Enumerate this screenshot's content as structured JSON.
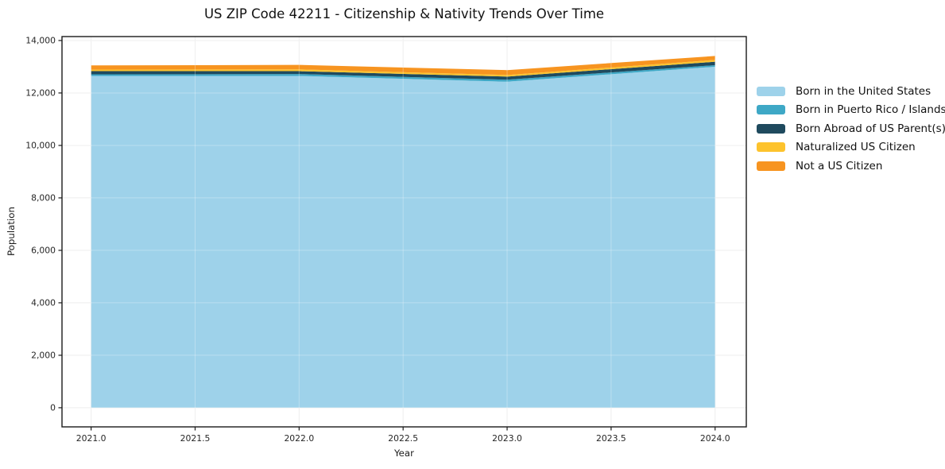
{
  "title": "US ZIP Code 42211 - Citizenship & Nativity Trends Over Time",
  "chart_data": {
    "type": "area",
    "stacked": true,
    "title": "US ZIP Code 42211 - Citizenship & Nativity Trends Over Time",
    "xlabel": "Year",
    "ylabel": "Population",
    "x": [
      2021,
      2022,
      2023,
      2024
    ],
    "series": [
      {
        "name": "Born in the United States",
        "color": "#9ED2EA",
        "values": [
          12650,
          12650,
          12430,
          13000
        ]
      },
      {
        "name": "Born in Puerto Rico / Islands",
        "color": "#3EA8C6",
        "values": [
          60,
          70,
          75,
          60
        ]
      },
      {
        "name": "Born Abroad of US Parent(s)",
        "color": "#1F4A5E",
        "values": [
          120,
          110,
          120,
          130
        ]
      },
      {
        "name": "Naturalized US Citizen",
        "color": "#FDC32D",
        "values": [
          60,
          70,
          60,
          70
        ]
      },
      {
        "name": "Not a US Citizen",
        "color": "#F79420",
        "values": [
          160,
          170,
          185,
          150
        ]
      }
    ],
    "x_ticks": [
      {
        "v": 2021.0,
        "label": "2021.0"
      },
      {
        "v": 2021.5,
        "label": "2021.5"
      },
      {
        "v": 2022.0,
        "label": "2022.0"
      },
      {
        "v": 2022.5,
        "label": "2022.5"
      },
      {
        "v": 2023.0,
        "label": "2023.0"
      },
      {
        "v": 2023.5,
        "label": "2023.5"
      },
      {
        "v": 2024.0,
        "label": "2024.0"
      }
    ],
    "y_ticks": [
      {
        "v": 0,
        "label": "0"
      },
      {
        "v": 2000,
        "label": "2,000"
      },
      {
        "v": 4000,
        "label": "4,000"
      },
      {
        "v": 6000,
        "label": "6,000"
      },
      {
        "v": 8000,
        "label": "8,000"
      },
      {
        "v": 10000,
        "label": "10,000"
      },
      {
        "v": 12000,
        "label": "12,000"
      },
      {
        "v": 14000,
        "label": "14,000"
      }
    ],
    "xlim": [
      2020.86,
      2024.15
    ],
    "ylim": [
      -730,
      14150
    ],
    "grid": true,
    "legend_position": "right",
    "style": {
      "axis_color": "#1a1a1a",
      "grid_color": "#e8e8e8",
      "grid_overlay_color": "rgba(255,255,255,0.30)",
      "background": "#ffffff"
    }
  }
}
